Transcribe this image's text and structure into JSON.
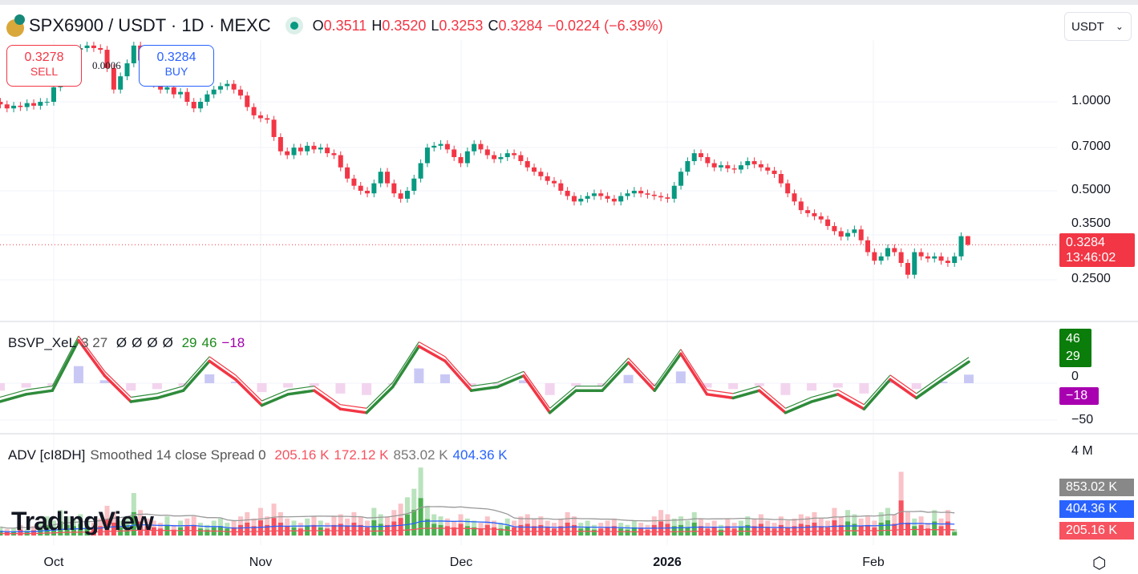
{
  "header": {
    "symbol": "SPX6900 / USDT · 1D · MEXC",
    "o_label": "O",
    "o": "0.3511",
    "h_label": "H",
    "h": "0.3520",
    "l_label": "L",
    "l": "0.3253",
    "c_label": "C",
    "c": "0.3284",
    "change": "−0.0224 (−6.39%)"
  },
  "currency": {
    "label": "USDT"
  },
  "sell": {
    "price": "0.3278",
    "label": "SELL"
  },
  "buy": {
    "price": "0.3284",
    "label": "BUY"
  },
  "spread": "0.0006",
  "price_axis": {
    "ticks": [
      "1.0000",
      "0.7000",
      "0.5000",
      "0.3500",
      "0.2500"
    ],
    "last_price": "0.3284",
    "countdown": "13:46:02"
  },
  "osc": {
    "legend": {
      "name": "BSVP_XeL",
      "params": "3 27",
      "nulls": [
        "Ø",
        "Ø",
        "Ø",
        "Ø"
      ],
      "v1": "29",
      "v2": "46",
      "v3": "−18"
    },
    "ticks": [
      "0",
      "−50"
    ],
    "tags": [
      "46",
      "29",
      "−18"
    ]
  },
  "adv": {
    "legend": {
      "name": "ADV [cI8DH]",
      "params": "Smoothed 14 close Spread 0",
      "v1": "205.16 K",
      "v2": "172.12 K",
      "v3": "853.02 K",
      "v4": "404.36 K"
    },
    "ticks": [
      "4 M"
    ],
    "tags": [
      "853.02 K",
      "404.36 K",
      "205.16 K"
    ]
  },
  "branding": "TradingView",
  "colors": {
    "up": "#089981",
    "down": "#f23645",
    "osc_up": "#2e8b3a",
    "osc_down": "#f23645",
    "vol_up": "#4caf50",
    "vol_down": "#f7525f"
  },
  "chart_data": {
    "type": "candlestick",
    "scale": "log",
    "start": "2025-09-23",
    "interval": "1D",
    "x_ticks": [
      {
        "label": "Oct",
        "date": "2025-10-01"
      },
      {
        "label": "Nov",
        "date": "2025-11-01"
      },
      {
        "label": "Dec",
        "date": "2025-12-01"
      },
      {
        "label": "2026",
        "date": "2026-01-01"
      },
      {
        "label": "Feb",
        "date": "2026-02-01"
      }
    ],
    "last_candle": {
      "open": 0.3511,
      "high": 0.352,
      "low": 0.3253,
      "close": 0.3284
    },
    "closes": [
      0.98,
      0.95,
      0.97,
      0.96,
      0.99,
      0.97,
      1.0,
      1.0,
      1.12,
      1.25,
      1.38,
      1.5,
      1.52,
      1.55,
      1.52,
      1.5,
      1.3,
      1.1,
      1.22,
      1.35,
      1.55,
      1.38,
      1.2,
      1.15,
      1.1,
      1.12,
      1.06,
      1.08,
      1.0,
      0.95,
      1.0,
      1.06,
      1.1,
      1.13,
      1.15,
      1.1,
      1.05,
      0.96,
      0.9,
      0.88,
      0.87,
      0.76,
      0.68,
      0.66,
      0.7,
      0.68,
      0.71,
      0.69,
      0.7,
      0.67,
      0.66,
      0.6,
      0.55,
      0.52,
      0.5,
      0.49,
      0.53,
      0.58,
      0.53,
      0.49,
      0.47,
      0.5,
      0.55,
      0.62,
      0.7,
      0.71,
      0.72,
      0.69,
      0.65,
      0.62,
      0.68,
      0.72,
      0.69,
      0.66,
      0.64,
      0.65,
      0.67,
      0.66,
      0.63,
      0.6,
      0.58,
      0.56,
      0.54,
      0.53,
      0.5,
      0.48,
      0.46,
      0.47,
      0.48,
      0.49,
      0.48,
      0.47,
      0.46,
      0.48,
      0.49,
      0.5,
      0.49,
      0.485,
      0.48,
      0.475,
      0.47,
      0.52,
      0.58,
      0.63,
      0.67,
      0.65,
      0.62,
      0.6,
      0.61,
      0.595,
      0.59,
      0.61,
      0.63,
      0.615,
      0.6,
      0.585,
      0.57,
      0.53,
      0.49,
      0.46,
      0.43,
      0.42,
      0.41,
      0.4,
      0.38,
      0.365,
      0.35,
      0.36,
      0.37,
      0.34,
      0.31,
      0.29,
      0.3,
      0.32,
      0.31,
      0.285,
      0.26,
      0.31,
      0.3,
      0.295,
      0.3,
      0.29,
      0.285,
      0.3,
      0.3511,
      0.3284
    ],
    "oscillator": [
      -25,
      -15,
      -10,
      58,
      10,
      -25,
      -20,
      -10,
      30,
      5,
      -30,
      -15,
      -10,
      -35,
      -40,
      -5,
      50,
      30,
      -10,
      -5,
      10,
      -40,
      -10,
      -10,
      28,
      -10,
      40,
      -15,
      -20,
      -10,
      -40,
      -25,
      -15,
      -35,
      5,
      -20,
      5,
      29
    ],
    "oscillator_range": [
      -60,
      60
    ],
    "volume_k": [
      400,
      300,
      350,
      500,
      300,
      450,
      600,
      900,
      700,
      1200,
      900,
      800,
      1000,
      700,
      600,
      800,
      1400,
      1100,
      700,
      900,
      2000,
      1200,
      800,
      700,
      600,
      900,
      500,
      700,
      800,
      900,
      600,
      500,
      700,
      800,
      600,
      700,
      900,
      1100,
      800,
      1300,
      900,
      1500,
      1100,
      800,
      700,
      600,
      800,
      900,
      700,
      600,
      900,
      1000,
      800,
      1100,
      900,
      700,
      1300,
      1000,
      900,
      1200,
      1500,
      1800,
      2200,
      3200,
      1400,
      1000,
      900,
      800,
      700,
      1000,
      800,
      700,
      600,
      900,
      700,
      600,
      800,
      700,
      900,
      1000,
      800,
      900,
      700,
      600,
      800,
      1100,
      900,
      600,
      700,
      500,
      600,
      700,
      800,
      600,
      500,
      700,
      600,
      500,
      900,
      1200,
      1000,
      800,
      900,
      700,
      1100,
      800,
      600,
      700,
      500,
      800,
      600,
      700,
      900,
      800,
      1000,
      700,
      600,
      900,
      700,
      800,
      1000,
      900,
      1100,
      800,
      700,
      1300,
      900,
      1200,
      1000,
      800,
      900,
      700,
      1100,
      1300,
      1000,
      3000,
      1100,
      800,
      900,
      600,
      1200,
      800,
      1200,
      300
    ],
    "volume_axis_max_k": 4000
  }
}
